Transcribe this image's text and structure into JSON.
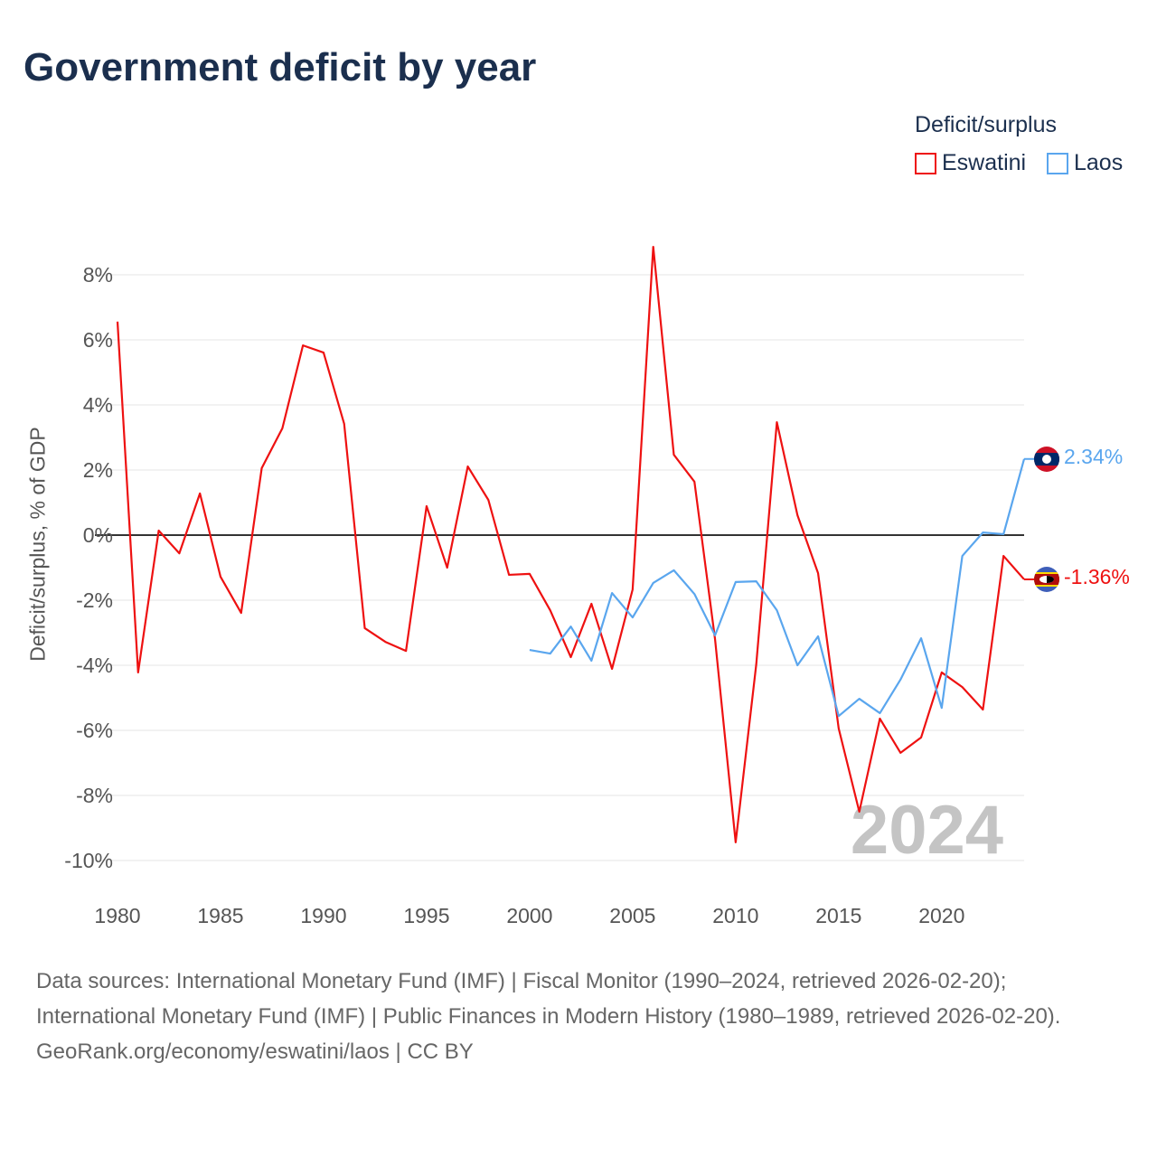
{
  "title": "Government deficit by year",
  "legend": {
    "title": "Deficit/surplus",
    "items": [
      "Eswatini",
      "Laos"
    ]
  },
  "year_watermark": "2024",
  "footer": {
    "sources": "Data sources: International Monetary Fund (IMF) | Fiscal Monitor (1990–2024, retrieved 2026-02-20); International Monetary Fund (IMF) | Public Finances in Modern History (1980–1989, retrieved 2026-02-20).",
    "credit": "GeoRank.org/economy/eswatini/laos | CC BY"
  },
  "chart_data": {
    "type": "line",
    "title": "Government deficit by year",
    "ylabel": "Deficit/surplus, % of GDP",
    "xlabel": "",
    "xlim": [
      1980,
      2024
    ],
    "ylim": [
      -10,
      8
    ],
    "yticks": [
      -10,
      -8,
      -6,
      -4,
      -2,
      0,
      2,
      4,
      6,
      8
    ],
    "xticks": [
      1980,
      1985,
      1990,
      1995,
      2000,
      2005,
      2010,
      2015,
      2020
    ],
    "legend_placement": "top-right",
    "series": [
      {
        "name": "Eswatini",
        "color": "#ee1111",
        "end_label": "-1.36%",
        "start": 1980,
        "values": [
          6.56,
          -4.22,
          0.14,
          -0.56,
          1.28,
          -1.28,
          -2.39,
          2.06,
          3.28,
          5.83,
          5.61,
          3.42,
          -2.86,
          -3.28,
          -3.56,
          0.89,
          -1.0,
          2.11,
          1.08,
          -1.22,
          -1.19,
          -2.31,
          -3.75,
          -2.11,
          -4.11,
          -1.67,
          8.86,
          2.47,
          1.64,
          -3.2,
          -9.44,
          -3.97,
          3.47,
          0.61,
          -1.17,
          -5.94,
          -8.5,
          -5.64,
          -6.69,
          -6.22,
          -4.22,
          -4.67,
          -5.36,
          -0.64,
          -1.36
        ]
      },
      {
        "name": "Laos",
        "color": "#5aa6ee",
        "end_label": "2.34%",
        "start": 2000,
        "values": [
          -3.53,
          -3.64,
          -2.81,
          -3.86,
          -1.78,
          -2.53,
          -1.47,
          -1.08,
          -1.81,
          -3.08,
          -1.44,
          -1.42,
          -2.31,
          -4.0,
          -3.11,
          -5.56,
          -5.03,
          -5.47,
          -4.44,
          -3.17,
          -5.31,
          -0.64,
          0.08,
          0.03,
          2.34
        ]
      }
    ]
  }
}
